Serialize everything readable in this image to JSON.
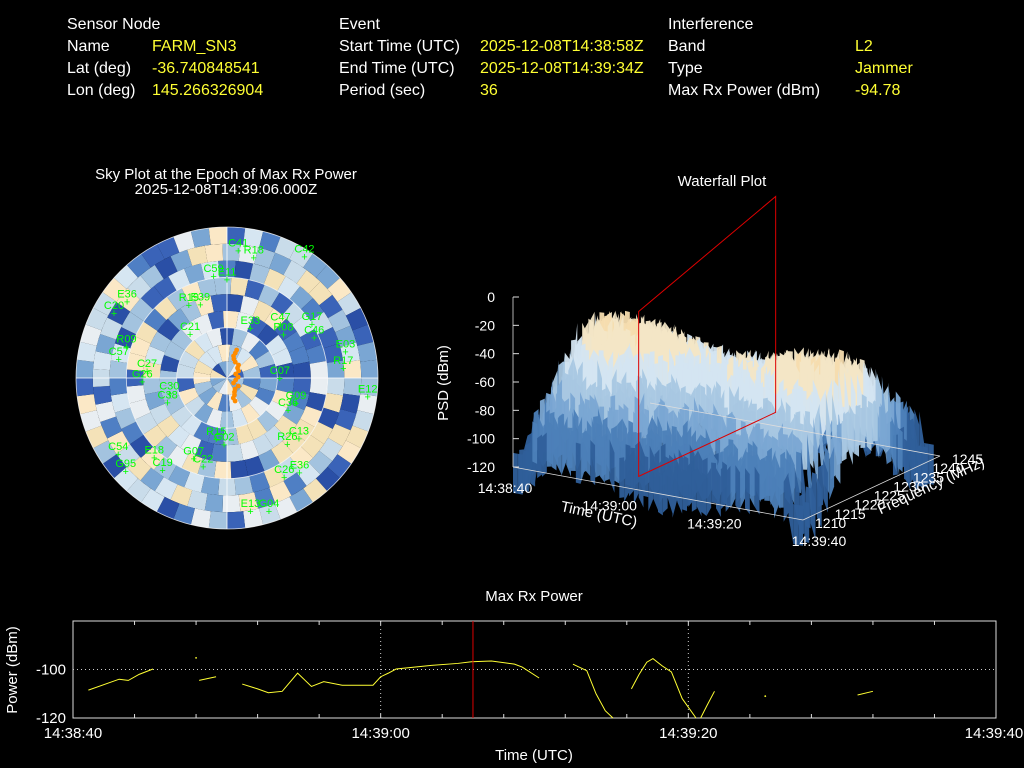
{
  "header": {
    "sensor": {
      "title": "Sensor Node",
      "rows": [
        {
          "label": "Name",
          "value": "FARM_SN3"
        },
        {
          "label": "Lat (deg)",
          "value": "-36.740848541"
        },
        {
          "label": "Lon (deg)",
          "value": "145.266326904"
        }
      ]
    },
    "event": {
      "title": "Event",
      "rows": [
        {
          "label": "Start Time (UTC)",
          "value": "2025-12-08T14:38:58Z"
        },
        {
          "label": "End Time (UTC)",
          "value": "2025-12-08T14:39:34Z"
        },
        {
          "label": "Period (sec)",
          "value": "36"
        }
      ]
    },
    "interference": {
      "title": "Interference",
      "rows": [
        {
          "label": "Band",
          "value": "L2"
        },
        {
          "label": "Type",
          "value": "Jammer"
        },
        {
          "label": "Max Rx Power (dBm)",
          "value": "-94.78"
        }
      ]
    }
  },
  "chart_data": [
    {
      "type": "scatter",
      "title": "Sky Plot at the Epoch of Max Rx Power",
      "subtitle": "2025-12-08T14:39:06.000Z",
      "colors": {
        "label": "#00ff00",
        "jammer": "#ff8c00"
      },
      "satellites": [
        "C07",
        "G95",
        "C41",
        "E36",
        "C57",
        "G17",
        "C22",
        "R19",
        "G09",
        "C38",
        "E33",
        "G04",
        "C20",
        "E03",
        "C19",
        "C59",
        "C13",
        "G26",
        "C47",
        "G02",
        "C21",
        "E12",
        "C54",
        "R18",
        "C26",
        "R09",
        "C46",
        "G07",
        "E39",
        "C36",
        "C30",
        "C42",
        "E13",
        "E36",
        "R17",
        "E18",
        "E11",
        "R26",
        "C27",
        "R08",
        "R15"
      ]
    },
    {
      "type": "heatmap",
      "title": "Waterfall Plot",
      "xlabel": "Time (UTC)",
      "ylabel": "Frequency (MHz)",
      "zlabel": "PSD (dBm)",
      "x_ticks": [
        "14:38:40",
        "14:39:00",
        "14:39:20",
        "14:39:40"
      ],
      "y_ticks": [
        "1210",
        "1215",
        "1220",
        "1225",
        "1230",
        "1235",
        "1240",
        "1245"
      ],
      "z_ticks": [
        "0",
        "-20",
        "-40",
        "-60",
        "-80",
        "-100",
        "-120"
      ],
      "zlim": [
        -120,
        0
      ],
      "marker_color": "#dd0000"
    },
    {
      "type": "line",
      "title": "Max Rx Power",
      "xlabel": "Time (UTC)",
      "ylabel": "Power (dBm)",
      "x_ticks": [
        "14:38:40",
        "14:39:00",
        "14:39:20",
        "14:39:40"
      ],
      "y_ticks": [
        "-100",
        "-120"
      ],
      "xlim": [
        0,
        60
      ],
      "ylim": [
        -120,
        -80
      ],
      "grid": true,
      "marker_t": 26,
      "line_color": "#ffff33",
      "marker_color": "#dd0000",
      "segments": [
        [
          [
            1,
            -108.5
          ],
          [
            3,
            -104
          ],
          [
            3.6,
            -104.5
          ],
          [
            4.3,
            -102
          ],
          [
            5.2,
            -99.8
          ]
        ],
        [
          [
            8,
            -95.2
          ]
        ],
        [
          [
            8.2,
            -104.5
          ],
          [
            9.3,
            -103
          ]
        ],
        [
          [
            11,
            -106
          ],
          [
            12,
            -108
          ],
          [
            12.7,
            -109.6
          ],
          [
            13.6,
            -109
          ],
          [
            14.6,
            -101.5
          ],
          [
            15.5,
            -107
          ],
          [
            16.3,
            -105
          ],
          [
            17.5,
            -106.5
          ],
          [
            19.5,
            -106.5
          ],
          [
            20,
            -103
          ],
          [
            20.5,
            -101.5
          ],
          [
            21,
            -99.8
          ],
          [
            23.3,
            -98.3
          ],
          [
            25,
            -97.5
          ],
          [
            25.9,
            -96.8
          ],
          [
            27.2,
            -96.5
          ],
          [
            28.7,
            -97.8
          ],
          [
            29.2,
            -99
          ],
          [
            30.3,
            -103.5
          ]
        ],
        [
          [
            32.5,
            -97.8
          ],
          [
            33.4,
            -100.5
          ],
          [
            34,
            -110
          ],
          [
            34.6,
            -117
          ],
          [
            35.1,
            -120
          ]
        ],
        [
          [
            36.3,
            -108
          ],
          [
            36.8,
            -102
          ],
          [
            37.3,
            -97
          ],
          [
            37.7,
            -95.5
          ],
          [
            38.3,
            -98.5
          ],
          [
            38.9,
            -101
          ],
          [
            39.6,
            -112
          ],
          [
            40.5,
            -120
          ]
        ],
        [
          [
            40.8,
            -120
          ],
          [
            41.2,
            -115
          ],
          [
            41.7,
            -109
          ]
        ],
        [
          [
            45,
            -111
          ]
        ],
        [
          [
            51,
            -110.5
          ],
          [
            52,
            -109
          ]
        ]
      ]
    }
  ]
}
